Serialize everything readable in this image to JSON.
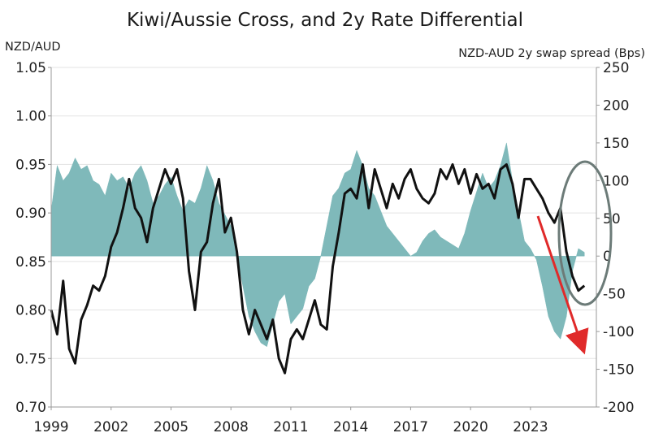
{
  "chart_data": {
    "type": "line",
    "title": "Kiwi/Aussie Cross, and 2y Rate Differential",
    "left_axis_label": "NZD/AUD",
    "right_axis_label": "NZD-AUD 2y swap spread (Bps)",
    "grid": "horizontal",
    "xlim": [
      1999.0,
      2026.3
    ],
    "ylim_left": [
      0.7,
      1.05
    ],
    "ylim_right": [
      -200,
      250
    ],
    "x_ticks": [
      1999,
      2002,
      2005,
      2008,
      2011,
      2014,
      2017,
      2020,
      2023
    ],
    "y_left_ticks": [
      "0.70",
      "0.75",
      "0.80",
      "0.85",
      "0.90",
      "0.95",
      "1.00",
      "1.05"
    ],
    "y_right_ticks": [
      "-200",
      "-150",
      "-100",
      "-50",
      "0",
      "50",
      "100",
      "150",
      "200",
      "250"
    ],
    "series": [
      {
        "axis": "left",
        "style": "line",
        "color": "#111111",
        "x": [
          1999.0,
          1999.3,
          1999.6,
          1999.9,
          2000.2,
          2000.5,
          2000.8,
          2001.1,
          2001.4,
          2001.7,
          2002.0,
          2002.3,
          2002.6,
          2002.9,
          2003.2,
          2003.5,
          2003.8,
          2004.1,
          2004.4,
          2004.7,
          2005.0,
          2005.3,
          2005.6,
          2005.9,
          2006.2,
          2006.5,
          2006.8,
          2007.1,
          2007.4,
          2007.7,
          2008.0,
          2008.3,
          2008.6,
          2008.9,
          2009.2,
          2009.5,
          2009.8,
          2010.1,
          2010.4,
          2010.7,
          2011.0,
          2011.3,
          2011.6,
          2011.9,
          2012.2,
          2012.5,
          2012.8,
          2013.1,
          2013.4,
          2013.7,
          2014.0,
          2014.3,
          2014.6,
          2014.9,
          2015.2,
          2015.5,
          2015.8,
          2016.1,
          2016.4,
          2016.7,
          2017.0,
          2017.3,
          2017.6,
          2017.9,
          2018.2,
          2018.5,
          2018.8,
          2019.1,
          2019.4,
          2019.7,
          2020.0,
          2020.3,
          2020.6,
          2020.9,
          2021.2,
          2021.5,
          2021.8,
          2022.1,
          2022.4,
          2022.7,
          2023.0,
          2023.3,
          2023.6,
          2023.9,
          2024.2,
          2024.5,
          2024.8,
          2025.1,
          2025.4,
          2025.7
        ],
        "values": [
          0.8,
          0.775,
          0.83,
          0.76,
          0.745,
          0.79,
          0.805,
          0.825,
          0.82,
          0.835,
          0.865,
          0.88,
          0.905,
          0.935,
          0.905,
          0.895,
          0.87,
          0.905,
          0.925,
          0.945,
          0.93,
          0.945,
          0.915,
          0.84,
          0.8,
          0.86,
          0.87,
          0.91,
          0.935,
          0.88,
          0.895,
          0.86,
          0.8,
          0.775,
          0.8,
          0.785,
          0.77,
          0.79,
          0.75,
          0.735,
          0.77,
          0.78,
          0.77,
          0.79,
          0.81,
          0.785,
          0.78,
          0.845,
          0.88,
          0.92,
          0.925,
          0.915,
          0.95,
          0.905,
          0.945,
          0.925,
          0.905,
          0.93,
          0.915,
          0.935,
          0.945,
          0.925,
          0.915,
          0.91,
          0.92,
          0.945,
          0.935,
          0.95,
          0.93,
          0.945,
          0.92,
          0.94,
          0.925,
          0.93,
          0.915,
          0.945,
          0.95,
          0.93,
          0.895,
          0.935,
          0.935,
          0.925,
          0.915,
          0.9,
          0.89,
          0.905,
          0.86,
          0.835,
          0.82,
          0.825
        ]
      },
      {
        "axis": "right",
        "style": "area",
        "color": "#7fb9ba",
        "x": [
          1999.0,
          1999.3,
          1999.6,
          1999.9,
          2000.2,
          2000.5,
          2000.8,
          2001.1,
          2001.4,
          2001.7,
          2002.0,
          2002.3,
          2002.6,
          2002.9,
          2003.2,
          2003.5,
          2003.8,
          2004.1,
          2004.4,
          2004.7,
          2005.0,
          2005.3,
          2005.6,
          2005.9,
          2006.2,
          2006.5,
          2006.8,
          2007.1,
          2007.4,
          2007.7,
          2008.0,
          2008.3,
          2008.6,
          2008.9,
          2009.2,
          2009.5,
          2009.8,
          2010.1,
          2010.4,
          2010.7,
          2011.0,
          2011.3,
          2011.6,
          2011.9,
          2012.2,
          2012.5,
          2012.8,
          2013.1,
          2013.4,
          2013.7,
          2014.0,
          2014.3,
          2014.6,
          2014.9,
          2015.2,
          2015.5,
          2015.8,
          2016.1,
          2016.4,
          2016.7,
          2017.0,
          2017.3,
          2017.6,
          2017.9,
          2018.2,
          2018.5,
          2018.8,
          2019.1,
          2019.4,
          2019.7,
          2020.0,
          2020.3,
          2020.6,
          2020.9,
          2021.2,
          2021.5,
          2021.8,
          2022.1,
          2022.4,
          2022.7,
          2023.0,
          2023.3,
          2023.6,
          2023.9,
          2024.2,
          2024.5,
          2024.8,
          2025.1,
          2025.4,
          2025.7
        ],
        "values": [
          60,
          120,
          100,
          110,
          130,
          115,
          120,
          100,
          95,
          80,
          110,
          100,
          105,
          90,
          110,
          120,
          100,
          70,
          80,
          95,
          105,
          80,
          60,
          75,
          70,
          90,
          120,
          100,
          70,
          55,
          40,
          0,
          -40,
          -80,
          -100,
          -115,
          -120,
          -90,
          -60,
          -50,
          -90,
          -80,
          -70,
          -40,
          -30,
          0,
          40,
          80,
          90,
          110,
          115,
          140,
          120,
          90,
          80,
          60,
          40,
          30,
          20,
          10,
          0,
          5,
          20,
          30,
          35,
          25,
          20,
          15,
          10,
          30,
          60,
          85,
          110,
          90,
          100,
          120,
          150,
          100,
          60,
          20,
          10,
          -5,
          -40,
          -80,
          -100,
          -110,
          -80,
          -20,
          10,
          5
        ]
      }
    ],
    "annotations": [
      "red-arrow-down",
      "grey-ellipse-2025"
    ]
  }
}
